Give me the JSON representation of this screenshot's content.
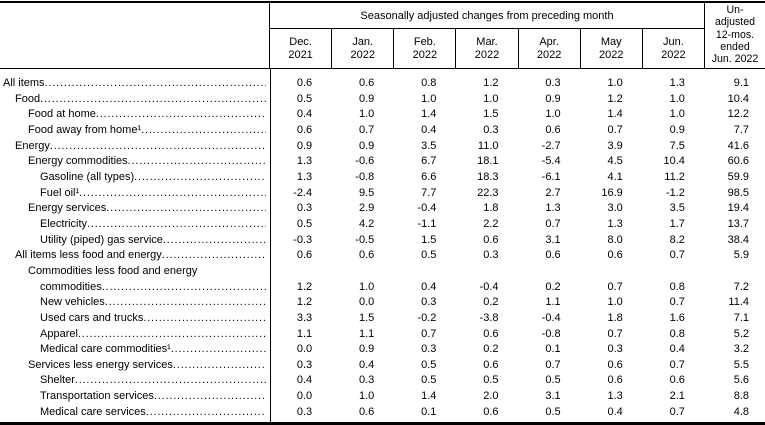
{
  "header": {
    "spanner": "Seasonally adjusted changes from preceding month",
    "months": [
      {
        "line1": "Dec.",
        "line2": "2021"
      },
      {
        "line1": "Jan.",
        "line2": "2022"
      },
      {
        "line1": "Feb.",
        "line2": "2022"
      },
      {
        "line1": "Mar.",
        "line2": "2022"
      },
      {
        "line1": "Apr.",
        "line2": "2022"
      },
      {
        "line1": "May",
        "line2": "2022"
      },
      {
        "line1": "Jun.",
        "line2": "2022"
      }
    ],
    "unadjusted": {
      "lines": [
        "Un-",
        "adjusted",
        "12-mos.",
        "ended",
        "Jun. 2022"
      ]
    }
  },
  "rows": [
    {
      "label": "All items",
      "indent": 0,
      "values": [
        "0.6",
        "0.6",
        "0.8",
        "1.2",
        "0.3",
        "1.0",
        "1.3"
      ],
      "unadjusted": "9.1"
    },
    {
      "label": "Food",
      "indent": 1,
      "values": [
        "0.5",
        "0.9",
        "1.0",
        "1.0",
        "0.9",
        "1.2",
        "1.0"
      ],
      "unadjusted": "10.4"
    },
    {
      "label": "Food at home",
      "indent": 2,
      "values": [
        "0.4",
        "1.0",
        "1.4",
        "1.5",
        "1.0",
        "1.4",
        "1.0"
      ],
      "unadjusted": "12.2"
    },
    {
      "label": "Food away from home¹",
      "indent": 2,
      "values": [
        "0.6",
        "0.7",
        "0.4",
        "0.3",
        "0.6",
        "0.7",
        "0.9"
      ],
      "unadjusted": "7.7"
    },
    {
      "label": "Energy",
      "indent": 1,
      "values": [
        "0.9",
        "0.9",
        "3.5",
        "11.0",
        "-2.7",
        "3.9",
        "7.5"
      ],
      "unadjusted": "41.6"
    },
    {
      "label": "Energy commodities",
      "indent": 2,
      "values": [
        "1.3",
        "-0.6",
        "6.7",
        "18.1",
        "-5.4",
        "4.5",
        "10.4"
      ],
      "unadjusted": "60.6"
    },
    {
      "label": "Gasoline (all types)",
      "indent": 3,
      "values": [
        "1.3",
        "-0.8",
        "6.6",
        "18.3",
        "-6.1",
        "4.1",
        "11.2"
      ],
      "unadjusted": "59.9"
    },
    {
      "label": "Fuel oil¹",
      "indent": 3,
      "values": [
        "-2.4",
        "9.5",
        "7.7",
        "22.3",
        "2.7",
        "16.9",
        "-1.2"
      ],
      "unadjusted": "98.5"
    },
    {
      "label": "Energy services",
      "indent": 2,
      "values": [
        "0.3",
        "2.9",
        "-0.4",
        "1.8",
        "1.3",
        "3.0",
        "3.5"
      ],
      "unadjusted": "19.4"
    },
    {
      "label": "Electricity",
      "indent": 3,
      "values": [
        "0.5",
        "4.2",
        "-1.1",
        "2.2",
        "0.7",
        "1.3",
        "1.7"
      ],
      "unadjusted": "13.7"
    },
    {
      "label": "Utility (piped) gas service",
      "indent": 3,
      "values": [
        "-0.3",
        "-0.5",
        "1.5",
        "0.6",
        "3.1",
        "8.0",
        "8.2"
      ],
      "unadjusted": "38.4"
    },
    {
      "label": "All items less food and energy",
      "indent": 1,
      "values": [
        "0.6",
        "0.6",
        "0.5",
        "0.3",
        "0.6",
        "0.6",
        "0.7"
      ],
      "unadjusted": "5.9"
    },
    {
      "label": "Commodities less food and energy",
      "label2": "commodities",
      "indent": 2,
      "values": [
        "1.2",
        "1.0",
        "0.4",
        "-0.4",
        "0.2",
        "0.7",
        "0.8"
      ],
      "unadjusted": "7.2"
    },
    {
      "label": "New vehicles",
      "indent": 3,
      "values": [
        "1.2",
        "0.0",
        "0.3",
        "0.2",
        "1.1",
        "1.0",
        "0.7"
      ],
      "unadjusted": "11.4"
    },
    {
      "label": "Used cars and trucks",
      "indent": 3,
      "values": [
        "3.3",
        "1.5",
        "-0.2",
        "-3.8",
        "-0.4",
        "1.8",
        "1.6"
      ],
      "unadjusted": "7.1"
    },
    {
      "label": "Apparel",
      "indent": 3,
      "values": [
        "1.1",
        "1.1",
        "0.7",
        "0.6",
        "-0.8",
        "0.7",
        "0.8"
      ],
      "unadjusted": "5.2"
    },
    {
      "label": "Medical care commodities¹",
      "indent": 3,
      "values": [
        "0.0",
        "0.9",
        "0.3",
        "0.2",
        "0.1",
        "0.3",
        "0.4"
      ],
      "unadjusted": "3.2"
    },
    {
      "label": "Services less energy services",
      "indent": 2,
      "values": [
        "0.3",
        "0.4",
        "0.5",
        "0.6",
        "0.7",
        "0.6",
        "0.7"
      ],
      "unadjusted": "5.5"
    },
    {
      "label": "Shelter",
      "indent": 3,
      "values": [
        "0.4",
        "0.3",
        "0.5",
        "0.5",
        "0.5",
        "0.6",
        "0.6"
      ],
      "unadjusted": "5.6"
    },
    {
      "label": "Transportation services",
      "indent": 3,
      "values": [
        "0.0",
        "1.0",
        "1.4",
        "2.0",
        "3.1",
        "1.3",
        "2.1"
      ],
      "unadjusted": "8.8"
    },
    {
      "label": "Medical care services",
      "indent": 3,
      "values": [
        "0.3",
        "0.6",
        "0.1",
        "0.6",
        "0.5",
        "0.4",
        "0.7"
      ],
      "unadjusted": "4.8"
    }
  ]
}
